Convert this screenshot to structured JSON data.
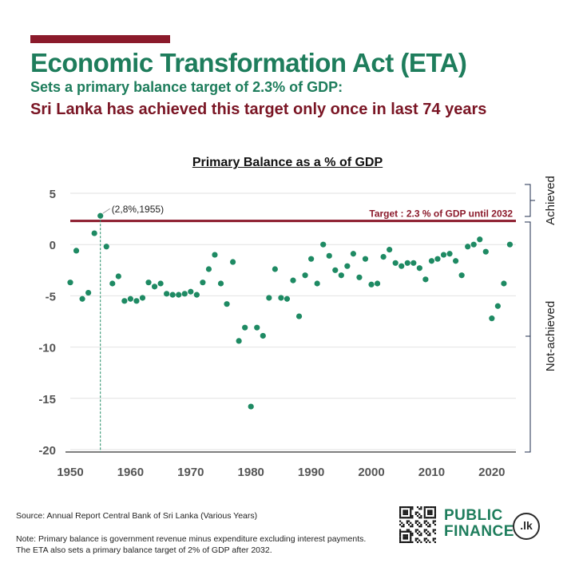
{
  "header": {
    "title": "Economic Transformation Act (ETA)",
    "subtitle": "Sets a primary balance target of 2.3% of GDP:",
    "subtitle2": "Sri Lanka has achieved this target only once in last 74 years"
  },
  "colors": {
    "accent_red": "#8b1a2b",
    "green": "#1e8a63",
    "title_green": "#1e7d5c",
    "dark_red": "#7a1524",
    "navy": "#1f2e4d"
  },
  "chart_data": {
    "type": "scatter",
    "title": "Primary Balance as a % of GDP",
    "xlabel": "",
    "ylabel": "",
    "xlim": [
      1950,
      2024
    ],
    "ylim": [
      -20,
      6
    ],
    "x_ticks": [
      1950,
      1960,
      1970,
      1980,
      1990,
      2000,
      2010,
      2020
    ],
    "y_ticks": [
      5,
      0,
      -5,
      -10,
      -15,
      -20
    ],
    "grid": "horizontal",
    "target": {
      "value": 2.3,
      "label": "Target : 2.3 % of GDP until 2032"
    },
    "highlight": {
      "x": 1955,
      "y": 2.8,
      "label": "(2,8%,1955)"
    },
    "bracket_labels": {
      "achieved": "Achieved",
      "not_achieved": "Not-achieved"
    },
    "points": [
      [
        1950,
        -3.7
      ],
      [
        1951,
        -0.6
      ],
      [
        1952,
        -5.3
      ],
      [
        1953,
        -4.7
      ],
      [
        1954,
        1.1
      ],
      [
        1955,
        2.8
      ],
      [
        1956,
        -0.2
      ],
      [
        1957,
        -3.8
      ],
      [
        1958,
        -3.1
      ],
      [
        1959,
        -5.5
      ],
      [
        1960,
        -5.3
      ],
      [
        1961,
        -5.5
      ],
      [
        1962,
        -5.2
      ],
      [
        1963,
        -3.7
      ],
      [
        1964,
        -4.1
      ],
      [
        1965,
        -3.8
      ],
      [
        1966,
        -4.8
      ],
      [
        1967,
        -4.9
      ],
      [
        1968,
        -4.9
      ],
      [
        1969,
        -4.8
      ],
      [
        1970,
        -4.6
      ],
      [
        1971,
        -4.9
      ],
      [
        1972,
        -3.7
      ],
      [
        1973,
        -2.4
      ],
      [
        1974,
        -1.0
      ],
      [
        1975,
        -3.8
      ],
      [
        1976,
        -5.8
      ],
      [
        1977,
        -1.7
      ],
      [
        1978,
        -9.4
      ],
      [
        1979,
        -8.1
      ],
      [
        1980,
        -15.8
      ],
      [
        1981,
        -8.1
      ],
      [
        1982,
        -8.9
      ],
      [
        1983,
        -5.2
      ],
      [
        1984,
        -2.4
      ],
      [
        1985,
        -5.2
      ],
      [
        1986,
        -5.3
      ],
      [
        1987,
        -3.5
      ],
      [
        1988,
        -7.0
      ],
      [
        1989,
        -3.0
      ],
      [
        1990,
        -1.4
      ],
      [
        1991,
        -3.8
      ],
      [
        1992,
        0.0
      ],
      [
        1993,
        -1.1
      ],
      [
        1994,
        -2.5
      ],
      [
        1995,
        -3.0
      ],
      [
        1996,
        -2.1
      ],
      [
        1997,
        -0.9
      ],
      [
        1998,
        -3.2
      ],
      [
        1999,
        -1.4
      ],
      [
        2000,
        -3.9
      ],
      [
        2001,
        -3.8
      ],
      [
        2002,
        -1.2
      ],
      [
        2003,
        -0.5
      ],
      [
        2004,
        -1.8
      ],
      [
        2005,
        -2.1
      ],
      [
        2006,
        -1.8
      ],
      [
        2007,
        -1.8
      ],
      [
        2008,
        -2.3
      ],
      [
        2009,
        -3.4
      ],
      [
        2010,
        -1.6
      ],
      [
        2011,
        -1.4
      ],
      [
        2012,
        -1.0
      ],
      [
        2013,
        -0.9
      ],
      [
        2014,
        -1.6
      ],
      [
        2015,
        -3.0
      ],
      [
        2016,
        -0.2
      ],
      [
        2017,
        0.0
      ],
      [
        2018,
        0.5
      ],
      [
        2019,
        -0.7
      ],
      [
        2020,
        -7.2
      ],
      [
        2021,
        -6.0
      ],
      [
        2022,
        -3.8
      ],
      [
        2023,
        0.0
      ]
    ]
  },
  "footer": {
    "source": "Source: Annual Report Central Bank of Sri Lanka (Various Years)",
    "note": "Note: Primary balance is government revenue minus expenditure excluding interest payments. The ETA also sets a primary balance target of 2% of GDP after 2032.",
    "logo_line1": "PUBLIC",
    "logo_line2": "FINANCE",
    "logo_suffix": ".lk"
  }
}
